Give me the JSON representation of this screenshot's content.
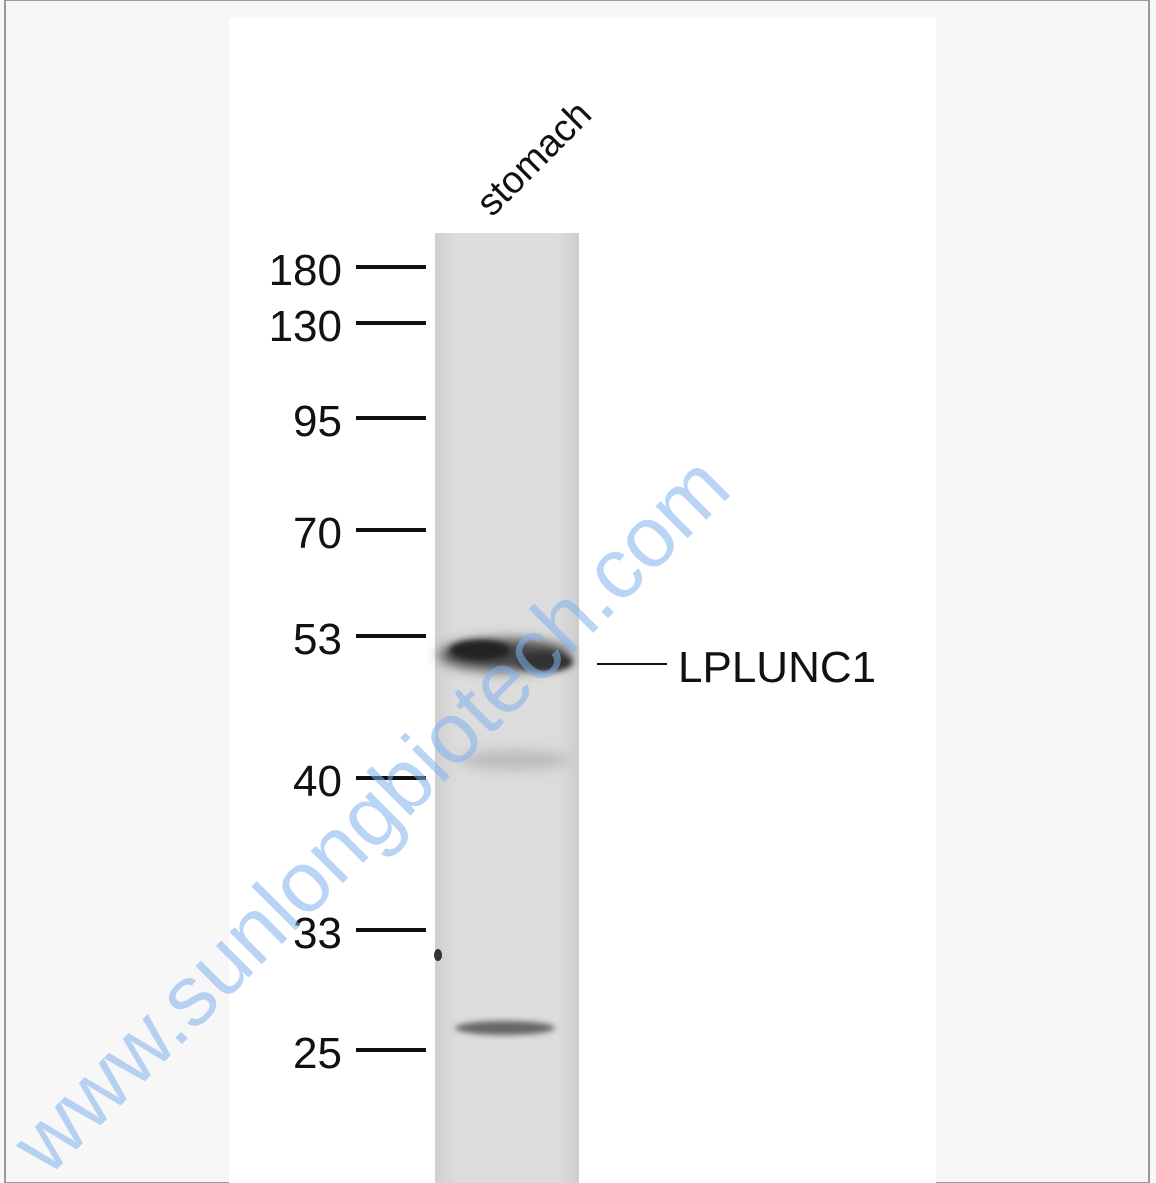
{
  "lane_label": "stomach",
  "markers": [
    "180",
    "130",
    "95",
    "70",
    "53",
    "40",
    "33",
    "25"
  ],
  "band_label": "LPLUNC1",
  "watermark": "www.sunlongbiotech.com"
}
